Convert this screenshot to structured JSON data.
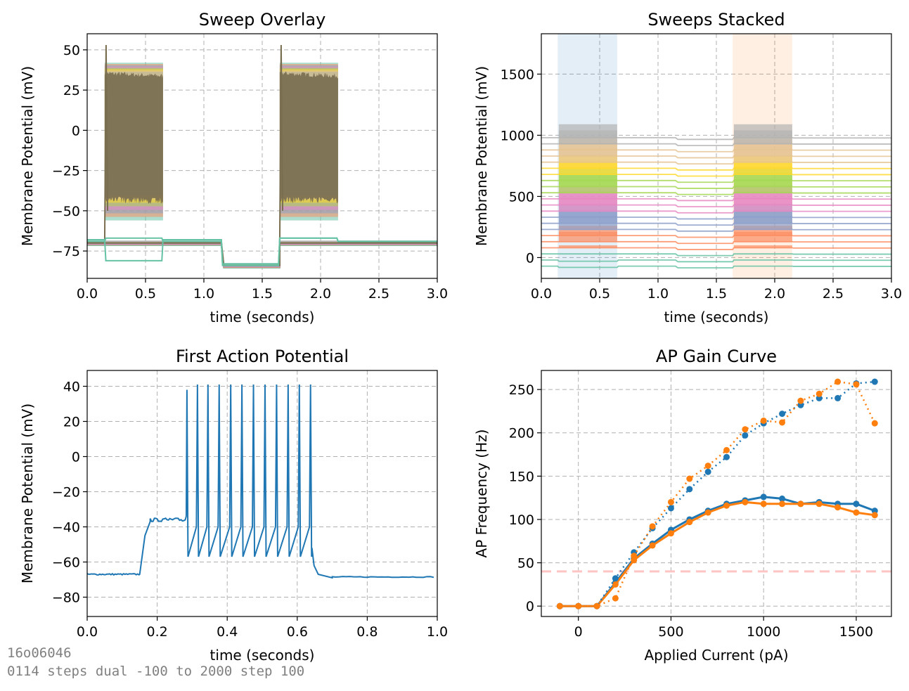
{
  "footer": {
    "line1": "16o06046",
    "line2": "0114 steps dual -100 to 2000 step 100"
  },
  "chart_data": [
    {
      "id": "overlay",
      "type": "line",
      "title": "Sweep Overlay",
      "xlabel": "time (seconds)",
      "ylabel": "Membrane Potential (mV)",
      "xlim": [
        0,
        3
      ],
      "ylim": [
        -92,
        60
      ],
      "xticks": [
        0.0,
        0.5,
        1.0,
        1.5,
        2.0,
        2.5,
        3.0
      ],
      "xtick_labels": [
        "0.0",
        "0.5",
        "1.0",
        "1.5",
        "2.0",
        "2.5",
        "3.0"
      ],
      "yticks": [
        50,
        25,
        0,
        -25,
        -50,
        -75
      ],
      "ytick_labels": [
        "50",
        "25",
        "0",
        "−25",
        "−50",
        "−75"
      ],
      "grid": true,
      "step_epochs": [
        [
          0.15,
          0.65
        ],
        [
          1.15,
          1.65
        ],
        [
          1.65,
          2.15
        ]
      ],
      "band_colors": [
        "#66c2a5",
        "#fc8d62",
        "#8da0cb",
        "#e78ac3",
        "#a6d854",
        "#ffd92f",
        "#e5c494",
        "#b3b3b3"
      ],
      "dense_color": "#7a6e50",
      "band_max_mV": 42,
      "band_min_mV": -56,
      "resting_mV": -70,
      "hyperpol_mV": -84,
      "series": [
        {
          "name_hidden": "lowest sweep",
          "x": [
            0,
            0.15,
            0.16,
            0.64,
            0.65,
            1.15,
            1.16,
            1.64,
            1.65,
            2.14,
            2.15,
            3.0
          ],
          "y": [
            -68,
            -68,
            -81,
            -81,
            -68,
            -68,
            -83,
            -83,
            -67,
            -67,
            -69,
            -69
          ],
          "color": "#66c2a5"
        },
        {
          "name_hidden": "second sweep",
          "x": [
            0,
            0.15,
            0.16,
            0.64,
            0.65,
            1.15,
            1.16,
            1.64,
            1.65,
            2.14,
            2.15,
            3.0
          ],
          "y": [
            -69,
            -69,
            -67,
            -67,
            -69,
            -69,
            -84,
            -84,
            -67,
            -67,
            -69,
            -69
          ],
          "color": "#66c2a5"
        }
      ]
    },
    {
      "id": "stacked",
      "type": "line",
      "title": "Sweeps Stacked",
      "xlabel": "time (seconds)",
      "ylabel": "Membrane Potential (mV)",
      "xlim": [
        0,
        3
      ],
      "ylim": [
        -170,
        1830
      ],
      "xticks": [
        0.0,
        0.5,
        1.0,
        1.5,
        2.0,
        2.5,
        3.0
      ],
      "xtick_labels": [
        "0.0",
        "0.5",
        "1.0",
        "1.5",
        "2.0",
        "2.5",
        "3.0"
      ],
      "yticks": [
        1500,
        1000,
        500,
        0
      ],
      "ytick_labels": [
        "1500",
        "1000",
        "500",
        "0"
      ],
      "grid": true,
      "shaded_regions": [
        {
          "x": [
            0.14,
            0.65
          ],
          "color": "#1f77b4"
        },
        {
          "x": [
            1.64,
            2.15
          ],
          "color": "#ff7f0e"
        }
      ],
      "sweep_offset_mV": 50,
      "sweep_count": 22,
      "base_mV": -70,
      "sweep_colors": [
        "#66c2a5",
        "#66c2a5",
        "#66c2a5",
        "#fc8d62",
        "#fc8d62",
        "#fc8d62",
        "#8da0cb",
        "#8da0cb",
        "#8da0cb",
        "#e78ac3",
        "#e78ac3",
        "#e78ac3",
        "#a6d854",
        "#a6d854",
        "#a6d854",
        "#ffd92f",
        "#ffd92f",
        "#e5c494",
        "#e5c494",
        "#e5c494",
        "#b3b3b3",
        "#b3b3b3"
      ]
    },
    {
      "id": "first_ap",
      "type": "line",
      "title": "First Action Potential",
      "xlabel": "time (seconds)",
      "ylabel": "Membrane Potential (mV)",
      "xlim": [
        0,
        1
      ],
      "ylim": [
        -91,
        49
      ],
      "xticks": [
        0.0,
        0.2,
        0.4,
        0.6,
        0.8,
        1.0
      ],
      "xtick_labels": [
        "0.0",
        "0.2",
        "0.4",
        "0.6",
        "0.8",
        "1.0"
      ],
      "yticks": [
        40,
        20,
        0,
        -20,
        -40,
        -60,
        -80
      ],
      "ytick_labels": [
        "40",
        "20",
        "0",
        "−20",
        "−40",
        "−60",
        "−80"
      ],
      "grid": true,
      "color": "#1f77b4",
      "spike_times": [
        0.285,
        0.315,
        0.345,
        0.377,
        0.41,
        0.442,
        0.475,
        0.508,
        0.541,
        0.574,
        0.606,
        0.638
      ],
      "spike_peaks": [
        38,
        41,
        41,
        41,
        41,
        41,
        41,
        41,
        41,
        41,
        41,
        41
      ],
      "trough_mV": -57
    },
    {
      "id": "gain",
      "type": "line",
      "title": "AP Gain Curve",
      "xlabel": "Applied Current (pA)",
      "ylabel": "AP Frequency (Hz)",
      "xlim": [
        -200,
        1690
      ],
      "ylim": [
        -12,
        272
      ],
      "xticks": [
        0,
        500,
        1000,
        1500
      ],
      "xtick_labels": [
        "0",
        "500",
        "1000",
        "1500"
      ],
      "yticks": [
        0,
        50,
        100,
        150,
        200,
        250
      ],
      "ytick_labels": [
        "0",
        "50",
        "100",
        "150",
        "200",
        "250"
      ],
      "grid": true,
      "threshold_line": {
        "y": 40,
        "color": "#ffc4c4"
      },
      "x": [
        -100,
        0,
        100,
        200,
        300,
        400,
        500,
        600,
        700,
        800,
        900,
        1000,
        1100,
        1200,
        1300,
        1400,
        1500,
        1600
      ],
      "series": [
        {
          "color": "#1f77b4",
          "style": "solid",
          "values": [
            0,
            0,
            0,
            27,
            55,
            72,
            88,
            100,
            110,
            118,
            122,
            126,
            124,
            118,
            120,
            118,
            118,
            110
          ]
        },
        {
          "color": "#ff7f0e",
          "style": "solid",
          "values": [
            0,
            0,
            0,
            25,
            53,
            70,
            84,
            97,
            108,
            116,
            120,
            118,
            118,
            118,
            118,
            114,
            108,
            105
          ]
        },
        {
          "color": "#1f77b4",
          "style": "dotted",
          "values": [
            0,
            0,
            0,
            32,
            62,
            90,
            113,
            135,
            155,
            172,
            197,
            211,
            222,
            232,
            240,
            240,
            257,
            259
          ]
        },
        {
          "color": "#ff7f0e",
          "style": "dotted",
          "values": [
            0,
            0,
            0,
            9,
            58,
            92,
            120,
            147,
            162,
            180,
            204,
            214,
            212,
            237,
            245,
            259,
            256,
            211
          ]
        }
      ]
    }
  ]
}
